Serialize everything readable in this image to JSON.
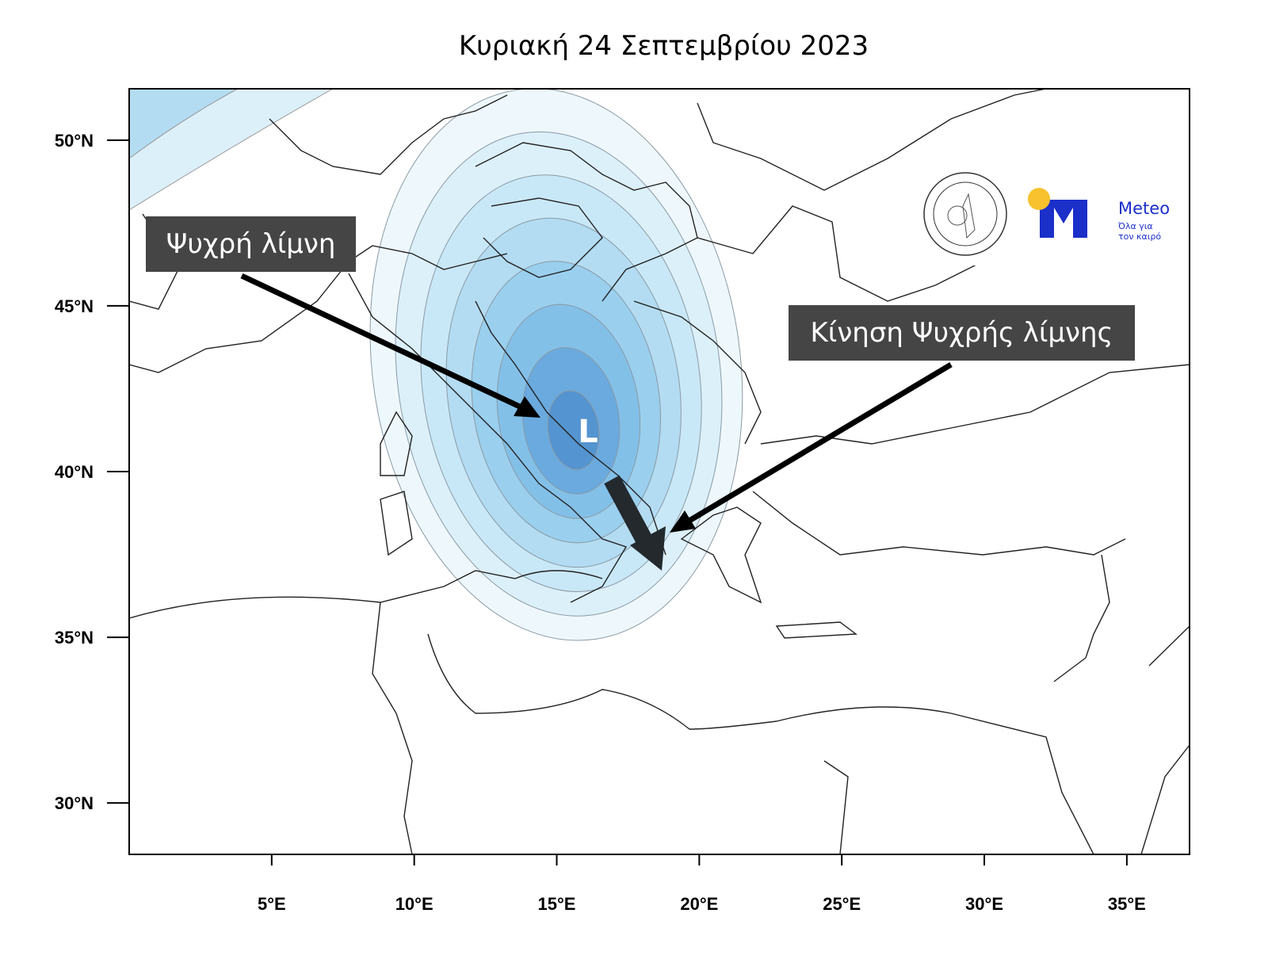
{
  "title": "Κυριακή 24 Σεπτεμβρίου 2023",
  "map": {
    "lon_range": [
      0,
      37.2
    ],
    "lat_range": [
      28.45,
      51.55
    ],
    "lon_ticks": [
      "5°E",
      "10°E",
      "15°E",
      "20°E",
      "25°E",
      "30°E",
      "35°E"
    ],
    "lat_ticks": [
      "50°N",
      "45°N",
      "40°N",
      "35°N",
      "30°N"
    ],
    "low_center": {
      "symbol": "L",
      "lon": 16.0,
      "lat": 41.3
    },
    "shading_colors": [
      "#eef8fc",
      "#dcf0fa",
      "#c9e8f7",
      "#b3dcf2",
      "#9acfee",
      "#83c0e8",
      "#6aaade",
      "#5494d0"
    ]
  },
  "annotations": {
    "cold_pool": "Ψυχρή λίμνη",
    "cold_pool_motion": "Κίνηση Ψυχρής λίμνης"
  },
  "logos": {
    "noa": "ΕΘΝΙΚΟΝ ΑΣΤΕΡΟΣΚΟΠΕΙΟΝ ΑΘΗΝΩΝ · NATIONAL OBSERVATORY OF ATHENS",
    "meteo_name": "Meteo",
    "meteo_slogan_1": "Όλα για",
    "meteo_slogan_2": "τον καιρό"
  }
}
